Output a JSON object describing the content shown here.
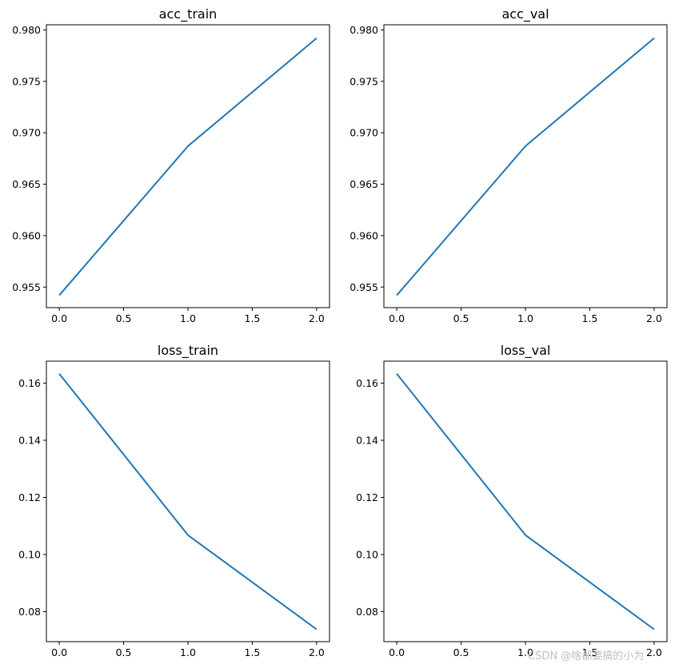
{
  "watermark": "CSDN @啥都要搞的小为",
  "chart_data": [
    {
      "type": "line",
      "title": "acc_train",
      "x": [
        0,
        1,
        2
      ],
      "series": [
        {
          "values": [
            0.9542,
            0.9687,
            0.9792
          ],
          "color": "#1f77b4"
        }
      ],
      "xlim": [
        -0.1,
        2.1
      ],
      "ylim": [
        0.953,
        0.9805
      ],
      "xticks": [
        0.0,
        0.5,
        1.0,
        1.5,
        2.0
      ],
      "xtick_labels": [
        "0.0",
        "0.5",
        "1.0",
        "1.5",
        "2.0"
      ],
      "yticks": [
        0.955,
        0.96,
        0.965,
        0.97,
        0.975,
        0.98
      ],
      "ytick_labels": [
        "0.955",
        "0.960",
        "0.965",
        "0.970",
        "0.975",
        "0.980"
      ],
      "grid": false
    },
    {
      "type": "line",
      "title": "acc_val",
      "x": [
        0,
        1,
        2
      ],
      "series": [
        {
          "values": [
            0.9542,
            0.9687,
            0.9792
          ],
          "color": "#1f77b4"
        }
      ],
      "xlim": [
        -0.1,
        2.1
      ],
      "ylim": [
        0.953,
        0.9805
      ],
      "xticks": [
        0.0,
        0.5,
        1.0,
        1.5,
        2.0
      ],
      "xtick_labels": [
        "0.0",
        "0.5",
        "1.0",
        "1.5",
        "2.0"
      ],
      "yticks": [
        0.955,
        0.96,
        0.965,
        0.97,
        0.975,
        0.98
      ],
      "ytick_labels": [
        "0.955",
        "0.960",
        "0.965",
        "0.970",
        "0.975",
        "0.980"
      ],
      "grid": false
    },
    {
      "type": "line",
      "title": "loss_train",
      "x": [
        0,
        1,
        2
      ],
      "series": [
        {
          "values": [
            0.1633,
            0.1068,
            0.0738
          ],
          "color": "#1f77b4"
        }
      ],
      "xlim": [
        -0.1,
        2.1
      ],
      "ylim": [
        0.0695,
        0.1677
      ],
      "xticks": [
        0.0,
        0.5,
        1.0,
        1.5,
        2.0
      ],
      "xtick_labels": [
        "0.0",
        "0.5",
        "1.0",
        "1.5",
        "2.0"
      ],
      "yticks": [
        0.08,
        0.1,
        0.12,
        0.14,
        0.16
      ],
      "ytick_labels": [
        "0.08",
        "0.10",
        "0.12",
        "0.14",
        "0.16"
      ],
      "grid": false
    },
    {
      "type": "line",
      "title": "loss_val",
      "x": [
        0,
        1,
        2
      ],
      "series": [
        {
          "values": [
            0.1633,
            0.1068,
            0.0738
          ],
          "color": "#1f77b4"
        }
      ],
      "xlim": [
        -0.1,
        2.1
      ],
      "ylim": [
        0.0695,
        0.1677
      ],
      "xticks": [
        0.0,
        0.5,
        1.0,
        1.5,
        2.0
      ],
      "xtick_labels": [
        "0.0",
        "0.5",
        "1.0",
        "1.5",
        "2.0"
      ],
      "yticks": [
        0.08,
        0.1,
        0.12,
        0.14,
        0.16
      ],
      "ytick_labels": [
        "0.08",
        "0.10",
        "0.12",
        "0.14",
        "0.16"
      ],
      "grid": false
    }
  ]
}
